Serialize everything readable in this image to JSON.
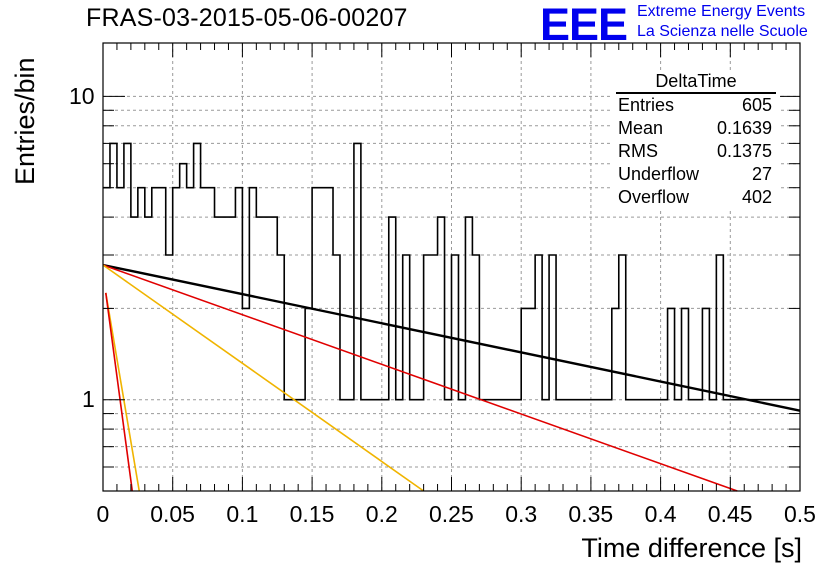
{
  "header": {
    "title": "FRAS-03-2015-05-06-00207",
    "logo_text": "EEE",
    "logo_line1": "Extreme Energy Events",
    "logo_line2": "La Scienza nelle Scuole"
  },
  "stats_box": {
    "name": "DeltaTime",
    "rows": [
      {
        "label": "Entries",
        "value": "605"
      },
      {
        "label": "Mean",
        "value": "0.1639"
      },
      {
        "label": "RMS",
        "value": "0.1375"
      },
      {
        "label": "Underflow",
        "value": "27"
      },
      {
        "label": "Overflow",
        "value": "402"
      }
    ]
  },
  "chart_data": {
    "type": "line",
    "xlabel": "Time difference [s]",
    "ylabel": "Entries/bin",
    "xlim": [
      0,
      0.5
    ],
    "ylim": [
      0.5,
      15
    ],
    "yscale": "log",
    "grid": true,
    "x_ticks": [
      "0",
      "0.05",
      "0.1",
      "0.15",
      "0.2",
      "0.25",
      "0.3",
      "0.35",
      "0.4",
      "0.45",
      "0.5"
    ],
    "y_ticks": [
      "1",
      "10"
    ],
    "histogram": {
      "bin_width": 0.005,
      "counts": [
        5,
        7,
        5,
        7,
        4,
        5,
        4,
        5,
        5,
        3,
        5,
        6,
        5,
        7,
        5,
        5,
        4,
        4,
        4,
        5,
        2,
        5,
        4,
        4,
        4,
        3,
        1,
        1,
        1,
        2,
        5,
        5,
        5,
        3,
        1,
        1,
        7,
        1,
        1,
        1,
        1,
        4,
        1,
        3,
        1,
        1,
        3,
        3,
        4,
        1,
        3,
        1,
        4,
        3,
        1,
        1,
        1,
        1,
        1,
        1,
        2,
        2,
        3,
        1,
        3,
        1,
        1,
        1,
        1,
        1,
        1,
        1,
        1,
        2,
        3,
        1,
        1,
        1,
        1,
        1,
        1,
        2,
        1,
        2,
        1,
        1,
        2,
        1,
        3,
        1,
        1,
        1,
        1,
        1,
        1,
        1,
        1,
        1,
        1,
        1
      ]
    },
    "series": [
      {
        "color": "#000000",
        "x": [
          0,
          0.5
        ],
        "y": [
          2.78,
          0.92
        ]
      },
      {
        "color": "#e00000",
        "x": [
          0,
          0.455
        ],
        "y": [
          2.78,
          0.5
        ]
      },
      {
        "color": "#f0b400",
        "x": [
          0,
          0.23
        ],
        "y": [
          2.78,
          0.5
        ]
      },
      {
        "color": "#f0b400",
        "x": [
          0.002,
          0.026
        ],
        "y": [
          2.25,
          0.5
        ]
      },
      {
        "color": "#e00000",
        "x": [
          0.002,
          0.021
        ],
        "y": [
          2.25,
          0.5
        ]
      }
    ]
  }
}
